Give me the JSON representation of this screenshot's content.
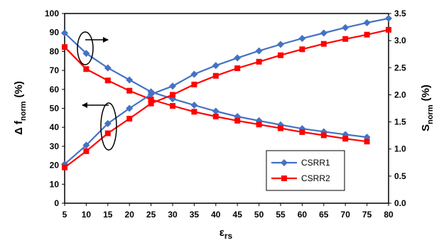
{
  "chart_data": {
    "type": "line",
    "xlabel": "ε",
    "xlabel_sub": "rs",
    "ylabel_left": "Δ f",
    "ylabel_left_sub": "norm",
    "ylabel_left_unit": "(%)",
    "ylabel_right": "S",
    "ylabel_right_sub": "norm",
    "ylabel_right_unit": "(%)",
    "x": [
      5,
      10,
      15,
      20,
      25,
      30,
      35,
      40,
      45,
      50,
      55,
      60,
      65,
      70,
      75,
      80
    ],
    "xticks": [
      "5",
      "10",
      "15",
      "20",
      "25",
      "30",
      "35",
      "40",
      "45",
      "50",
      "55",
      "60",
      "65",
      "70",
      "75",
      "80"
    ],
    "xlim": [
      5,
      80
    ],
    "ylim_left": [
      0,
      100
    ],
    "yticks_left": [
      "0",
      "10",
      "20",
      "30",
      "40",
      "50",
      "60",
      "70",
      "80",
      "90",
      "100"
    ],
    "ylim_right": [
      0,
      3.5
    ],
    "yticks_right": [
      "0.0",
      "0.5",
      "1.0",
      "1.5",
      "2.0",
      "2.5",
      "3.0",
      "3.5"
    ],
    "grid": false,
    "legend_position": "bottom-right",
    "series": [
      {
        "name": "CSRR1",
        "color": "#4472C4",
        "marker": "diamond",
        "axis": "left",
        "kind": "delta_f",
        "x": [
          5,
          10,
          15,
          20,
          25,
          30,
          35,
          40,
          45,
          50,
          55,
          60,
          65,
          70,
          75
        ],
        "values": [
          89.7,
          79,
          71.3,
          65,
          58.7,
          55,
          51.7,
          48.5,
          45.7,
          43.5,
          41.3,
          39.3,
          37.7,
          36.2,
          34.8
        ]
      },
      {
        "name": "CSRR2",
        "color": "#FF0000",
        "marker": "square",
        "axis": "left",
        "kind": "delta_f",
        "x": [
          5,
          10,
          15,
          20,
          25,
          30,
          35,
          40,
          45,
          50,
          55,
          60,
          65,
          70,
          75
        ],
        "values": [
          82.3,
          70.7,
          64.7,
          59.3,
          54.7,
          51.3,
          48.2,
          45.7,
          43.5,
          41.5,
          39.5,
          37.5,
          35.8,
          34,
          32.5
        ]
      },
      {
        "name": "CSRR1",
        "color": "#4472C4",
        "marker": "diamond",
        "axis": "right",
        "kind": "s_norm",
        "x": [
          5,
          10,
          15,
          20,
          25,
          30,
          35,
          40,
          45,
          50,
          55,
          60,
          65,
          70,
          75,
          80
        ],
        "values": [
          0.72,
          1.07,
          1.47,
          1.75,
          2.01,
          2.16,
          2.38,
          2.54,
          2.68,
          2.81,
          2.93,
          3.04,
          3.14,
          3.24,
          3.33,
          3.41
        ]
      },
      {
        "name": "CSRR2",
        "color": "#FF0000",
        "marker": "square",
        "axis": "right",
        "kind": "s_norm",
        "x": [
          5,
          10,
          15,
          20,
          25,
          30,
          35,
          40,
          45,
          50,
          55,
          60,
          65,
          70,
          75,
          80
        ],
        "values": [
          0.66,
          0.96,
          1.29,
          1.56,
          1.84,
          2.0,
          2.19,
          2.35,
          2.49,
          2.61,
          2.73,
          2.84,
          2.94,
          3.03,
          3.11,
          3.2
        ]
      }
    ],
    "legend": [
      {
        "name": "CSRR1",
        "color": "#4472C4",
        "marker": "diamond"
      },
      {
        "name": "CSRR2",
        "color": "#FF0000",
        "marker": "square"
      }
    ]
  }
}
